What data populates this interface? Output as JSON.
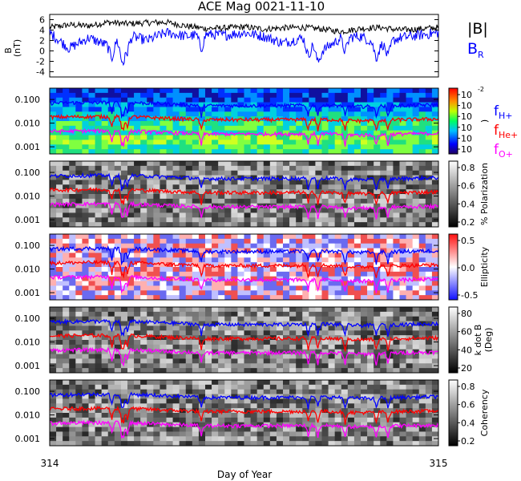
{
  "title": "ACE Mag 0021-11-10",
  "xaxis": {
    "label": "Day of Year",
    "start_label": "314",
    "end_label": "315"
  },
  "colors": {
    "black": "#000000",
    "blue": "#0000ff",
    "red": "#ff0000",
    "magenta": "#ff00ff"
  },
  "bfield_panel": {
    "ylabel": "B",
    "yunit": "(nT)",
    "ticks": [
      "6",
      "4",
      "2",
      "0",
      "-2",
      "-4"
    ],
    "legend": [
      {
        "text": "|B|",
        "color": "#000000"
      },
      {
        "text": "B",
        "sub": "R",
        "color": "#0000ff"
      }
    ]
  },
  "freq_axis": {
    "ticks": [
      "0.100",
      "0.010",
      "0.001"
    ],
    "scale": "log"
  },
  "gyro_legend": [
    {
      "text": "f",
      "sub": "H+",
      "color": "#0000ff"
    },
    {
      "text": "f",
      "sub": "He+",
      "color": "#ff0000"
    },
    {
      "text": "f",
      "sub": "O+",
      "color": "#ff00ff"
    }
  ],
  "panels": [
    {
      "name": "power-spectrum",
      "colorbar": "rainbow",
      "cb_label": ")",
      "cb_ticks": [
        "10",
        "10",
        "10",
        "10",
        "10",
        "10"
      ],
      "cb_top": "-2"
    },
    {
      "name": "polarization",
      "colorbar": "gray",
      "cb_label": "% Polarization",
      "cb_ticks": [
        "0.8",
        "0.6",
        "0.4",
        "0.2"
      ]
    },
    {
      "name": "ellipticity",
      "colorbar": "bwr",
      "cb_label": "Ellipticity",
      "cb_ticks": [
        "0.5",
        "0.0",
        "-0.5"
      ]
    },
    {
      "name": "k-dot-b",
      "colorbar": "gray",
      "cb_label": "k dot B",
      "cb_label2": "(Deg)",
      "cb_ticks": [
        "80",
        "60",
        "40",
        "20"
      ]
    },
    {
      "name": "coherency",
      "colorbar": "gray",
      "cb_label": "Coherency",
      "cb_ticks": [
        "0.8",
        "0.6",
        "0.4",
        "0.2"
      ]
    }
  ],
  "chart_data": [
    {
      "type": "line",
      "title": "ACE Mag 0021-11-10",
      "ylabel": "B (nT)",
      "xlabel": "Day of Year",
      "xlim": [
        314,
        315
      ],
      "ylim": [
        -5,
        7
      ],
      "series": [
        {
          "name": "|B|",
          "x": [
            314.0,
            314.05,
            314.1,
            314.15,
            314.2,
            314.25,
            314.3,
            314.35,
            314.4,
            314.45,
            314.5,
            314.55,
            314.6,
            314.65,
            314.7,
            314.75,
            314.8,
            314.85,
            314.9,
            314.95,
            315.0
          ],
          "values": [
            4.5,
            5.0,
            4.8,
            5.5,
            5.2,
            5.4,
            5.5,
            4.8,
            4.3,
            4.4,
            4.6,
            4.2,
            4.4,
            4.5,
            4.2,
            3.7,
            4.3,
            4.5,
            4.0,
            4.2,
            4.5
          ]
        },
        {
          "name": "B",
          "x": [
            314.0,
            314.05,
            314.1,
            314.15,
            314.2,
            314.25,
            314.3,
            314.35,
            314.4,
            314.45,
            314.5,
            314.55,
            314.6,
            314.65,
            314.7,
            314.75,
            314.8,
            314.85,
            314.9,
            314.95,
            315.0
          ],
          "values": [
            3.5,
            0.5,
            2.5,
            1.0,
            3.0,
            2.0,
            3.5,
            2.8,
            3.2,
            3.0,
            3.5,
            2.8,
            1.5,
            2.5,
            0.0,
            2.5,
            2.8,
            1.0,
            2.5,
            3.0,
            3.5
          ]
        }
      ]
    },
    {
      "type": "line",
      "xlabel": "Day of Year",
      "yscale": "log",
      "xlim": [
        314,
        315
      ],
      "ylim": [
        0.0005,
        0.3
      ],
      "series": [
        {
          "name": "f H+",
          "x": [
            314.0,
            314.1,
            314.2,
            314.3,
            314.4,
            314.5,
            314.6,
            314.7,
            314.8,
            314.9,
            315.0
          ],
          "values": [
            0.07,
            0.075,
            0.075,
            0.065,
            0.055,
            0.055,
            0.055,
            0.058,
            0.05,
            0.055,
            0.06
          ]
        },
        {
          "name": "f He+",
          "x": [
            314.0,
            314.1,
            314.2,
            314.3,
            314.4,
            314.5,
            314.6,
            314.7,
            314.8,
            314.9,
            315.0
          ],
          "values": [
            0.018,
            0.019,
            0.019,
            0.016,
            0.014,
            0.014,
            0.014,
            0.0145,
            0.0125,
            0.014,
            0.015
          ]
        },
        {
          "name": "f O+",
          "x": [
            314.0,
            314.1,
            314.2,
            314.3,
            314.4,
            314.5,
            314.6,
            314.7,
            314.8,
            314.9,
            315.0
          ],
          "values": [
            0.0045,
            0.0047,
            0.0047,
            0.004,
            0.0035,
            0.0035,
            0.0035,
            0.0036,
            0.0031,
            0.0035,
            0.0037
          ]
        }
      ]
    },
    {
      "type": "heatmap",
      "xlabel": "Day of Year",
      "yscale": "log",
      "xlim": [
        314,
        315
      ],
      "ylim": [
        0.0005,
        0.3
      ]
    }
  ]
}
